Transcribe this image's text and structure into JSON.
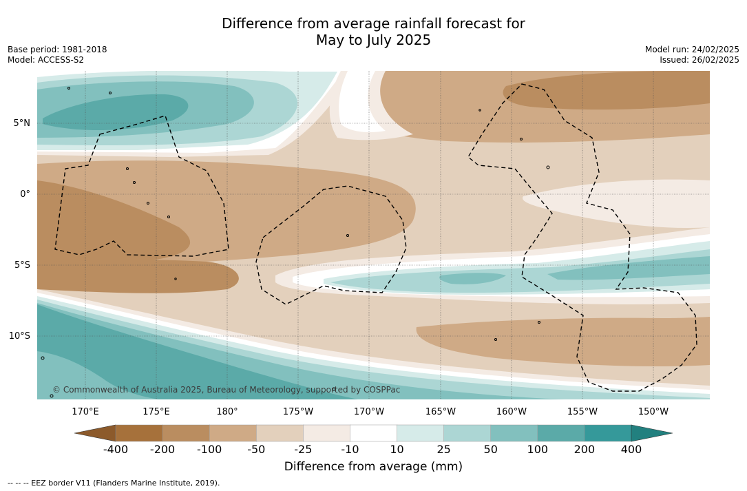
{
  "title": {
    "line1": "Difference from average rainfall forecast for",
    "line2": "May to July 2025"
  },
  "meta_left": {
    "base_period": "Base period: 1981-2018",
    "model": "Model: ACCESS-S2"
  },
  "meta_right": {
    "model_run": "Model run: 24/02/2025",
    "issued": "Issued: 26/02/2025"
  },
  "lat_labels": [
    "5°N",
    "0°",
    "5°S",
    "10°S"
  ],
  "lon_labels": [
    "170°E",
    "175°E",
    "180°",
    "175°W",
    "170°W",
    "165°W",
    "160°W",
    "155°W",
    "150°W"
  ],
  "copyright": "© Commonwealth of Australia 2025, Bureau of Meteorology, supported by COSPPac",
  "colorbar": {
    "ticks": [
      "-400",
      "-200",
      "-100",
      "-50",
      "-25",
      "-10",
      "10",
      "25",
      "50",
      "100",
      "200",
      "400"
    ],
    "colors": [
      "#a6713b",
      "#ba8d60",
      "#cfaa86",
      "#e3d0bc",
      "#f4ebe4",
      "#ffffff",
      "#d6ebe9",
      "#acd6d4",
      "#82c0be",
      "#5baaa8",
      "#35999a"
    ],
    "under_color": "#8c5a2b",
    "over_color": "#22807f",
    "title": "Difference from average (mm)"
  },
  "footer": "--  --  -- EEZ border V11 (Flanders Marine Institute, 2019)."
}
